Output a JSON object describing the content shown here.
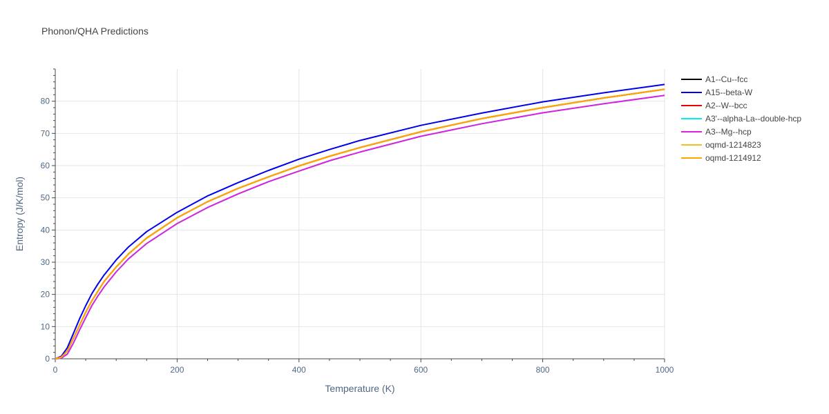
{
  "chart_data": {
    "type": "line",
    "title": "Phonon/QHA Predictions",
    "xlabel": "Temperature (K)",
    "ylabel": "Entropy (J/K/mol)",
    "xlim": [
      0,
      1000
    ],
    "ylim": [
      0,
      90
    ],
    "xticks": [
      0,
      200,
      400,
      600,
      800,
      1000
    ],
    "yticks": [
      0,
      10,
      20,
      30,
      40,
      50,
      60,
      70,
      80
    ],
    "grid": true,
    "legend_position": "right",
    "x": [
      0,
      10,
      20,
      30,
      40,
      50,
      60,
      70,
      80,
      100,
      120,
      150,
      200,
      250,
      300,
      350,
      400,
      450,
      500,
      600,
      700,
      800,
      900,
      1000
    ],
    "series": [
      {
        "name": "A1--Cu--fcc",
        "color": "#000000",
        "values": [
          0,
          0.5,
          2.5,
          6.5,
          10.5,
          14.5,
          18.0,
          21.0,
          24.0,
          28.5,
          32.5,
          37.5,
          43.8,
          48.8,
          52.9,
          56.5,
          59.9,
          62.9,
          65.6,
          70.5,
          74.6,
          78.0,
          81.0,
          83.7
        ]
      },
      {
        "name": "A15--beta-W",
        "color": "#0000ee",
        "values": [
          0,
          0.8,
          3.5,
          8.0,
          12.5,
          16.5,
          20.2,
          23.2,
          26.0,
          30.7,
          34.7,
          39.5,
          45.5,
          50.6,
          54.7,
          58.5,
          62.0,
          65.0,
          67.8,
          72.5,
          76.3,
          79.8,
          82.6,
          85.2
        ]
      },
      {
        "name": "A2--W--bcc",
        "color": "#ee0000",
        "values": [
          0,
          0.5,
          2.5,
          6.5,
          10.5,
          14.5,
          18.0,
          21.0,
          24.0,
          28.5,
          32.5,
          37.5,
          43.8,
          48.8,
          52.9,
          56.5,
          59.9,
          62.9,
          65.6,
          70.5,
          74.6,
          78.0,
          81.0,
          83.7
        ]
      },
      {
        "name": "A3'--alpha-La--double-hcp",
        "color": "#00eeee",
        "values": [
          0,
          0.2,
          1.5,
          5.0,
          9.0,
          12.8,
          16.5,
          19.5,
          22.3,
          27.0,
          31.0,
          35.8,
          42.0,
          47.0,
          51.2,
          55.0,
          58.3,
          61.5,
          64.2,
          69.1,
          73.0,
          76.4,
          79.2,
          81.8
        ]
      },
      {
        "name": "A3--Mg--hcp",
        "color": "#dd22dd",
        "values": [
          0,
          0.2,
          1.5,
          5.0,
          9.0,
          12.8,
          16.5,
          19.5,
          22.3,
          27.0,
          31.0,
          35.8,
          42.0,
          47.0,
          51.2,
          55.0,
          58.3,
          61.5,
          64.2,
          69.1,
          73.0,
          76.4,
          79.2,
          81.8
        ]
      },
      {
        "name": "oqmd-1214823",
        "color": "#f2c01f",
        "values": [
          0,
          0.5,
          2.5,
          6.5,
          10.5,
          14.5,
          18.0,
          21.0,
          24.0,
          28.5,
          32.5,
          37.5,
          43.8,
          48.8,
          52.9,
          56.5,
          59.9,
          62.9,
          65.6,
          70.5,
          74.6,
          78.0,
          81.0,
          83.7
        ]
      },
      {
        "name": "oqmd-1214912",
        "color": "#ffa500",
        "values": [
          0,
          0.5,
          2.5,
          6.5,
          10.5,
          14.5,
          18.0,
          21.0,
          24.0,
          28.5,
          32.5,
          37.5,
          43.8,
          48.8,
          52.9,
          56.5,
          59.9,
          62.9,
          65.6,
          70.5,
          74.6,
          78.0,
          81.0,
          83.7
        ]
      }
    ]
  }
}
